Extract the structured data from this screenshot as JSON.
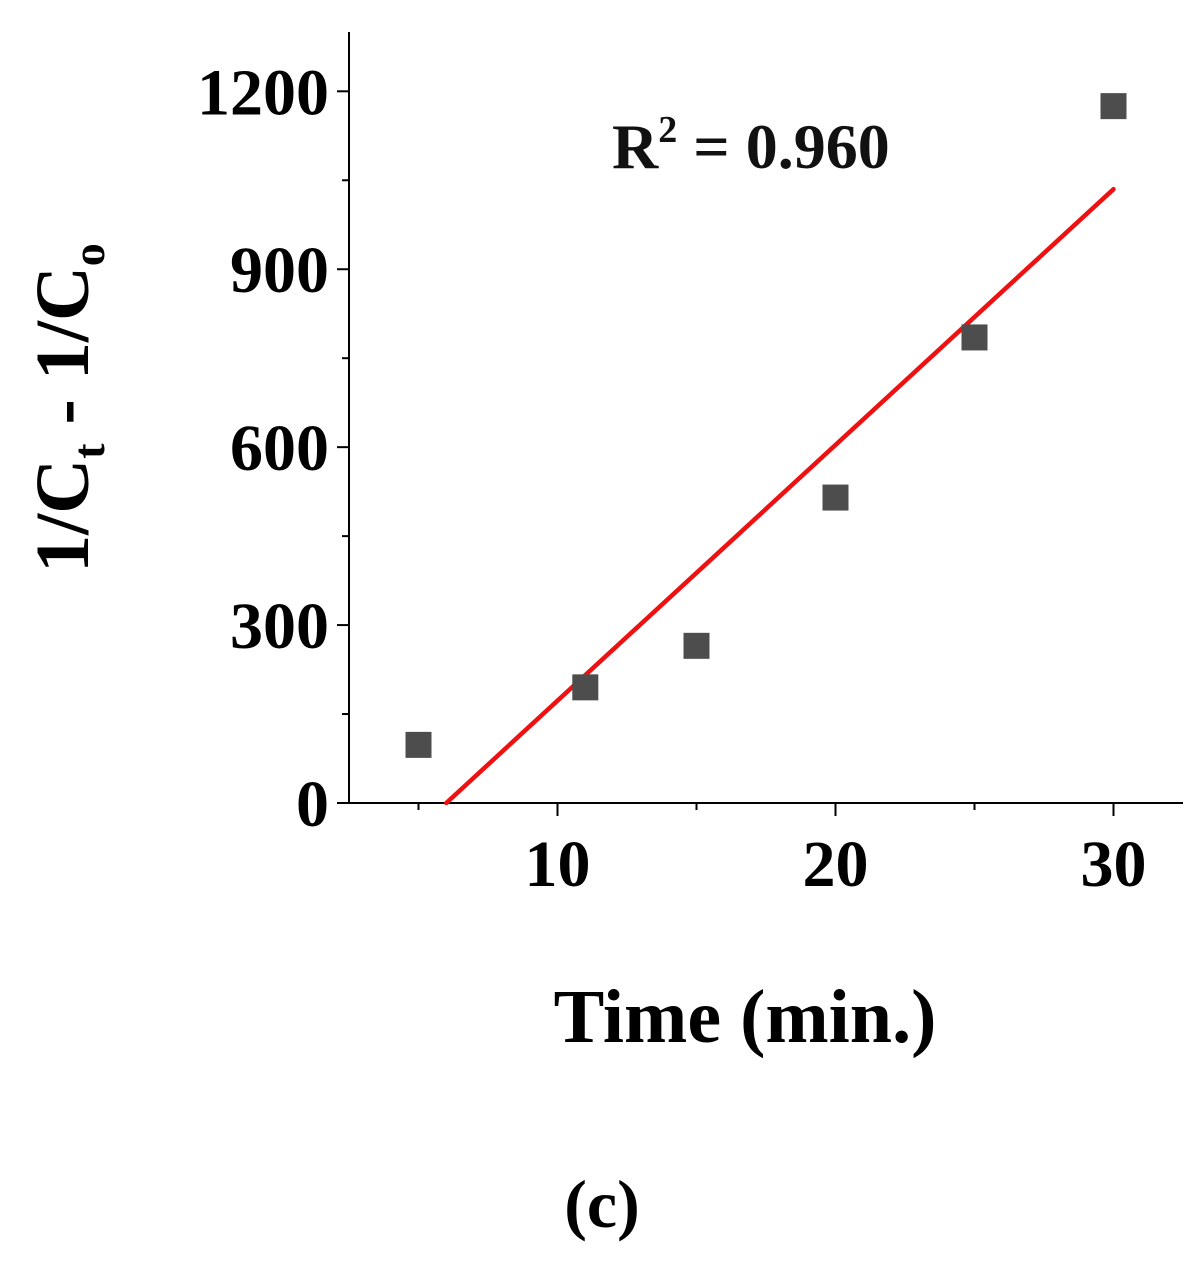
{
  "chart_data": {
    "type": "scatter",
    "title": "",
    "xlabel": "Time (min.)",
    "ylabel": {
      "prefix": "1/C",
      "sub1": "t",
      "middle": " - 1/C",
      "sub2": "o"
    },
    "xlim": [
      2.5,
      32.5
    ],
    "ylim": [
      0,
      1300
    ],
    "x_ticks": [
      10,
      20,
      30
    ],
    "x_minor_ticks": [
      5,
      15,
      25
    ],
    "y_ticks": [
      0,
      300,
      600,
      900,
      1200
    ],
    "y_minor_ticks": [
      150,
      450,
      750,
      1050
    ],
    "series": [
      {
        "marker": "square",
        "color": "#4d4d4d",
        "points": [
          {
            "x": 5,
            "y": 98
          },
          {
            "x": 11,
            "y": 195
          },
          {
            "x": 15,
            "y": 265
          },
          {
            "x": 20,
            "y": 515
          },
          {
            "x": 25,
            "y": 785
          },
          {
            "x": 30,
            "y": 1175
          }
        ]
      }
    ],
    "fit_line": {
      "color": "#ee1111",
      "x": [
        6,
        30
      ],
      "y": [
        0,
        1035
      ]
    },
    "annotation": {
      "base": "R",
      "sup": "2",
      "rest": " = 0.960"
    },
    "grid": false
  },
  "panel_label": "(c)"
}
